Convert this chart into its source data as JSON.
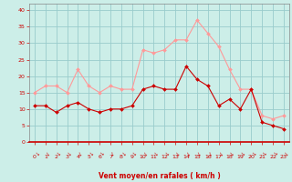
{
  "x": [
    0,
    1,
    2,
    3,
    4,
    5,
    6,
    7,
    8,
    9,
    10,
    11,
    12,
    13,
    14,
    15,
    16,
    17,
    18,
    19,
    20,
    21,
    22,
    23
  ],
  "wind_mean": [
    11,
    11,
    9,
    11,
    12,
    10,
    9,
    10,
    10,
    11,
    16,
    17,
    16,
    16,
    23,
    19,
    17,
    11,
    13,
    10,
    16,
    6,
    5,
    4
  ],
  "wind_gust": [
    15,
    17,
    17,
    15,
    22,
    17,
    15,
    17,
    16,
    16,
    28,
    27,
    28,
    31,
    31,
    37,
    33,
    29,
    22,
    16,
    16,
    8,
    7,
    8
  ],
  "xlabel": "Vent moyen/en rafales ( km/h )",
  "ylim": [
    0,
    42
  ],
  "xlim": [
    -0.5,
    23.5
  ],
  "yticks": [
    0,
    5,
    10,
    15,
    20,
    25,
    30,
    35,
    40
  ],
  "xticks": [
    0,
    1,
    2,
    3,
    4,
    5,
    6,
    7,
    8,
    9,
    10,
    11,
    12,
    13,
    14,
    15,
    16,
    17,
    18,
    19,
    20,
    21,
    22,
    23
  ],
  "bg_color": "#cceee8",
  "grid_color": "#99cccc",
  "line_mean_color": "#cc0000",
  "line_gust_color": "#ff9999",
  "marker_color_mean": "#cc0000",
  "marker_color_gust": "#ff9999",
  "xlabel_color": "#cc0000",
  "tick_color": "#cc0000",
  "spine_color": "#888888",
  "bottom_spine_color": "#cc0000"
}
